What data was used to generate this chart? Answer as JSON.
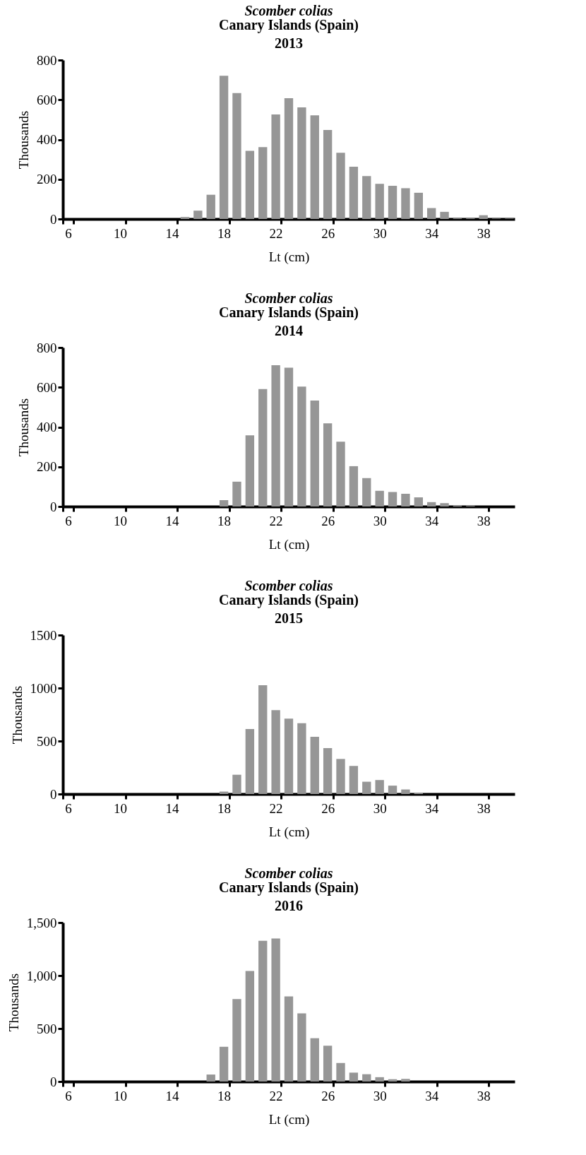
{
  "chart_data": [
    {
      "type": "bar",
      "title": "Scomber colias",
      "subtitle": "Canary Islands (Spain)\n2013",
      "xlabel": "Lt (cm)",
      "ylabel": "Thousands",
      "categories": [
        "6",
        null,
        null,
        null,
        "10",
        null,
        null,
        null,
        "14",
        null,
        null,
        null,
        "18",
        null,
        null,
        null,
        "22",
        null,
        null,
        null,
        "26",
        null,
        null,
        null,
        "30",
        null,
        null,
        null,
        "34",
        null,
        null,
        null,
        "38",
        null,
        null
      ],
      "values": [
        0,
        0,
        0,
        0,
        0,
        0,
        0,
        0,
        0,
        10,
        42,
        122,
        721,
        634,
        343,
        362,
        526,
        608,
        562,
        522,
        448,
        333,
        263,
        216,
        177,
        167,
        155,
        132,
        55,
        36,
        3,
        3,
        19,
        2,
        2
      ],
      "color": "#969696",
      "ylim": [
        0,
        800
      ],
      "yticks": [
        0,
        200,
        400,
        600,
        800
      ],
      "grid": false
    },
    {
      "type": "bar",
      "title": "Scomber colias",
      "subtitle": "Canary Islands (Spain)\n2014",
      "xlabel": "Lt (cm)",
      "ylabel": "Thousands",
      "categories": [
        "6",
        null,
        null,
        null,
        "10",
        null,
        null,
        null,
        "14",
        null,
        null,
        null,
        "18",
        null,
        null,
        null,
        "22",
        null,
        null,
        null,
        "26",
        null,
        null,
        null,
        "30",
        null,
        null,
        null,
        "34",
        null,
        null,
        null,
        "38",
        null,
        null
      ],
      "values": [
        0,
        0,
        0,
        0,
        0,
        0,
        0,
        0,
        0,
        0,
        0,
        0,
        32,
        125,
        358,
        591,
        711,
        699,
        604,
        533,
        419,
        326,
        203,
        143,
        79,
        73,
        64,
        46,
        22,
        17,
        5,
        3,
        0,
        0,
        0
      ],
      "color": "#969696",
      "ylim": [
        0,
        800
      ],
      "yticks": [
        0,
        200,
        400,
        600,
        800
      ],
      "grid": false
    },
    {
      "type": "bar",
      "title": "Scomber colias",
      "subtitle": "Canary Islands (Spain)\n2015",
      "xlabel": "Lt (cm)",
      "ylabel": "Thousands",
      "categories": [
        "6",
        null,
        null,
        null,
        "10",
        null,
        null,
        null,
        "14",
        null,
        null,
        null,
        "18",
        null,
        null,
        null,
        "22",
        null,
        null,
        null,
        "26",
        null,
        null,
        null,
        "30",
        null,
        null,
        null,
        "34",
        null,
        null,
        null,
        "38",
        null,
        null
      ],
      "values": [
        0,
        0,
        0,
        0,
        0,
        0,
        0,
        0,
        0,
        0,
        0,
        0,
        23,
        182,
        613,
        1026,
        791,
        712,
        669,
        540,
        434,
        331,
        265,
        116,
        132,
        79,
        43,
        13,
        0,
        0,
        0,
        0,
        0,
        0,
        0
      ],
      "color": "#969696",
      "ylim": [
        0,
        1500
      ],
      "yticks": [
        0,
        500,
        1000,
        1500
      ],
      "grid": false
    },
    {
      "type": "bar",
      "title": "Scomber colias",
      "subtitle": "Canary Islands (Spain)\n2016",
      "xlabel": "Lt (cm)",
      "ylabel": "Thousands",
      "categories": [
        "6",
        null,
        null,
        null,
        "10",
        null,
        null,
        null,
        "14",
        null,
        null,
        null,
        "18",
        null,
        null,
        null,
        "22",
        null,
        null,
        null,
        "26",
        null,
        null,
        null,
        "30",
        null,
        null,
        null,
        "34",
        null,
        null,
        null,
        "38",
        null,
        null
      ],
      "values": [
        0,
        0,
        0,
        0,
        0,
        0,
        0,
        0,
        0,
        0,
        0,
        66,
        328,
        778,
        1044,
        1328,
        1350,
        803,
        644,
        409,
        338,
        175,
        84,
        69,
        41,
        22,
        25,
        0,
        0,
        0,
        0,
        0,
        0,
        0,
        0
      ],
      "color": "#969696",
      "ylim": [
        0,
        1500
      ],
      "yticks": [
        0,
        {
          "value": 500,
          "label": "500"
        },
        {
          "value": 1000,
          "label": "1,000"
        },
        {
          "value": 1500,
          "label": "1,500"
        }
      ],
      "grid": false
    }
  ]
}
